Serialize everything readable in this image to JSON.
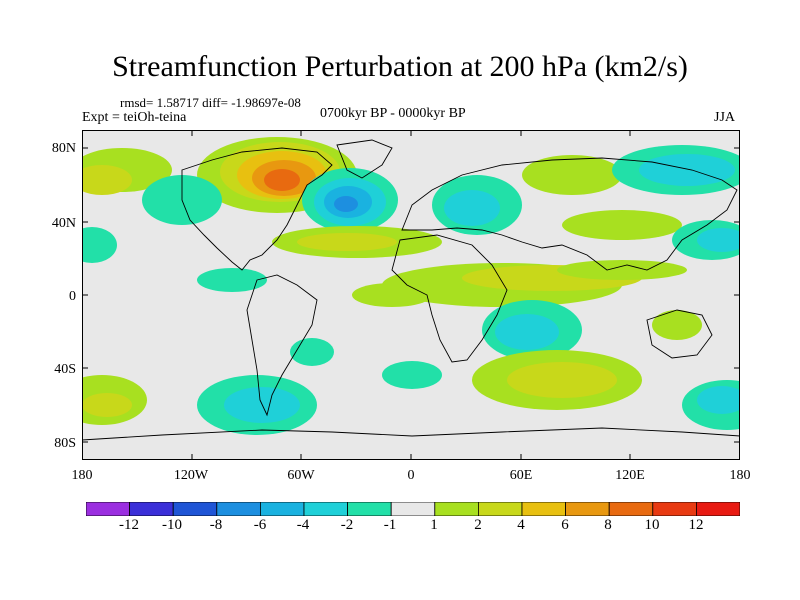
{
  "title": "Streamfunction Perturbation at 200 hPa (km2/s)",
  "stats": "rmsd= 1.58717  diff= -1.98697e-08",
  "experiment": "Expt = teiOh-teina",
  "period": "0700kyr BP - 0000kyr BP",
  "season": "JJA",
  "map": {
    "lat_labels": [
      "80N",
      "40N",
      "0",
      "40S",
      "80S"
    ],
    "lon_labels": [
      "180",
      "120W",
      "60W",
      "0",
      "60E",
      "120E",
      "180"
    ]
  },
  "colorbar": {
    "labels": [
      "-12",
      "-10",
      "-8",
      "-6",
      "-4",
      "-2",
      "-1",
      "1",
      "2",
      "4",
      "6",
      "8",
      "10",
      "12"
    ],
    "colors": [
      "#9b2fe0",
      "#3b2fd8",
      "#1f55d6",
      "#1d8fe0",
      "#1ab2e0",
      "#1fd0d8",
      "#22e0a8",
      "#e8e8e8",
      "#a8e020",
      "#c8d81a",
      "#e8c010",
      "#e89810",
      "#e86a10",
      "#e83a12",
      "#e81a12"
    ]
  },
  "palette": {
    "neutral": "#e8e8e8",
    "pos1": "#a8e020",
    "pos2": "#c8d81a",
    "pos3": "#e8c010",
    "pos4": "#e89810",
    "pos5": "#e86a10",
    "pos6": "#e83a12",
    "neg1": "#22e0a8",
    "neg2": "#1fd0d8",
    "neg3": "#1ab2e0",
    "neg4": "#1d8fe0",
    "neg5": "#1f55d6"
  }
}
